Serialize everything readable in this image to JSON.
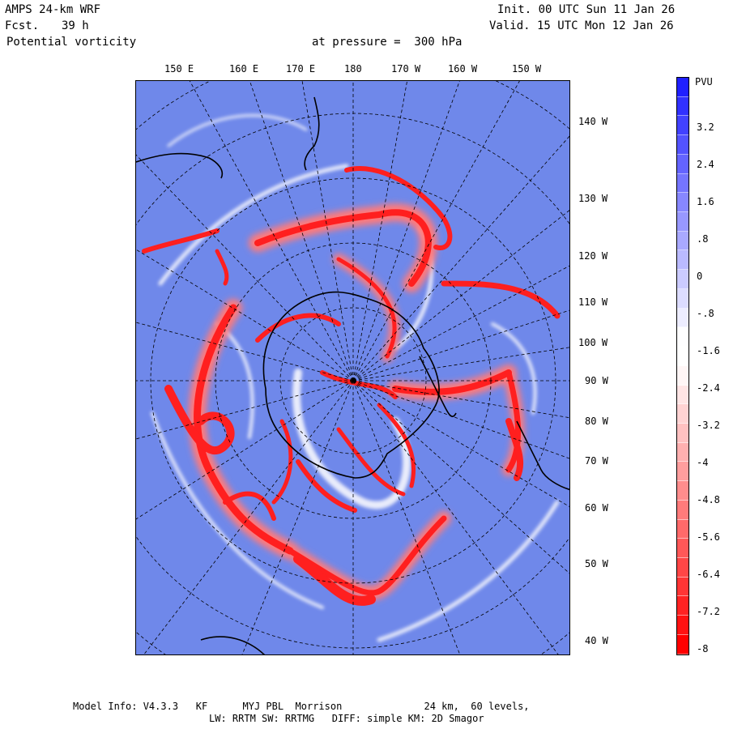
{
  "header": {
    "model": "AMPS 24-km WRF",
    "fcst_label": "Fcst.",
    "fcst_value": "39 h",
    "field": "Potential vorticity",
    "level": "at pressure =  300 hPa",
    "init": "Init. 00 UTC Sun 11 Jan 26",
    "valid": "Valid. 15 UTC Mon 12 Jan 26"
  },
  "top_lon_labels": [
    "150 E",
    "160 E",
    "170 E",
    "180",
    "170 W",
    "160 W",
    "150 W"
  ],
  "right_lon_labels": [
    "140 W",
    "130 W",
    "120 W",
    "110 W",
    "100 W",
    "90 W",
    "80 W",
    "70 W",
    "60 W",
    "50 W",
    "40 W"
  ],
  "colorbar": {
    "unit": "PVU",
    "ticks": [
      "3.2",
      "2.4",
      "1.6",
      ".8",
      "0",
      "-.8",
      "-1.6",
      "-2.4",
      "-3.2",
      "-4",
      "-4.8",
      "-5.6",
      "-6.4",
      "-7.2",
      "-8"
    ],
    "range": [
      -8,
      4
    ],
    "colors": {
      "positive": "#2020ff",
      "neutral": "#ffffff",
      "negative": "#ff0000",
      "background": "#6f88ea"
    }
  },
  "footer": {
    "line1": "Model Info: V4.3.3   KF      MYJ PBL  Morrison              24 km,  60 levels,",
    "line2": "LW: RRTM SW: RRTMG   DIFF: simple KM: 2D Smagor"
  }
}
